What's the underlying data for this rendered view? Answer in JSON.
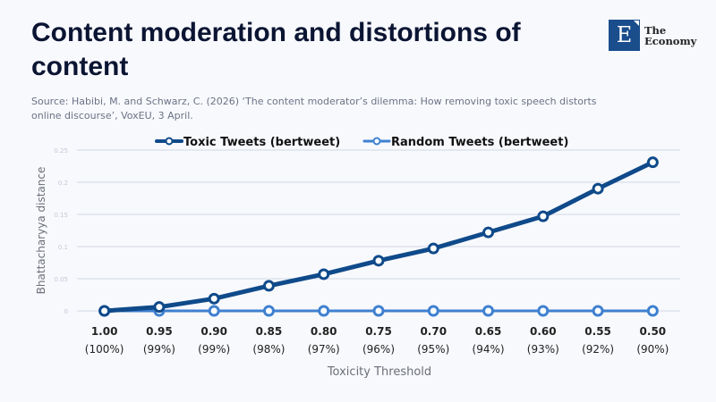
{
  "header": {
    "title": "Content moderation and distortions of content",
    "source": "Source: Habibi, M. and Schwarz, C. (2026) ‘The content moderator’s dilemma: How removing toxic speech distorts online discourse’, VoxEU, 3 April.",
    "logo_letter": "E",
    "logo_text_1": "The",
    "logo_text_2": "Economy"
  },
  "colors": {
    "toxic": "#0f4a8a",
    "random": "#3f80d0",
    "grid": "#cfd7e4"
  },
  "chart_data": {
    "type": "line",
    "title": "Content moderation and distortions of content",
    "xlabel": "Toxicity Threshold",
    "ylabel": "Bhattacharyya distance",
    "ylim": [
      0,
      0.25
    ],
    "yticks": [
      "0",
      "0.05",
      "0.1",
      "0.15",
      "0.2",
      "0.25"
    ],
    "ytick_values": [
      0,
      0.05,
      0.1,
      0.15,
      0.2,
      0.25
    ],
    "grid": true,
    "legend_position": "top-center",
    "categories": [
      {
        "top": "1.00",
        "bottom": "(100%)"
      },
      {
        "top": "0.95",
        "bottom": "(99%)"
      },
      {
        "top": "0.90",
        "bottom": "(99%)"
      },
      {
        "top": "0.85",
        "bottom": "(98%)"
      },
      {
        "top": "0.80",
        "bottom": "(97%)"
      },
      {
        "top": "0.75",
        "bottom": "(96%)"
      },
      {
        "top": "0.70",
        "bottom": "(95%)"
      },
      {
        "top": "0.65",
        "bottom": "(94%)"
      },
      {
        "top": "0.60",
        "bottom": "(93%)"
      },
      {
        "top": "0.55",
        "bottom": "(92%)"
      },
      {
        "top": "0.50",
        "bottom": "(90%)"
      }
    ],
    "series": [
      {
        "name": "Toxic Tweets (bertweet)",
        "values": [
          0,
          0.006,
          0.019,
          0.039,
          0.057,
          0.078,
          0.097,
          0.122,
          0.147,
          0.19,
          0.231
        ]
      },
      {
        "name": "Random Tweets (bertweet)",
        "values": [
          0,
          0,
          0,
          0,
          0,
          0,
          0,
          0,
          0,
          0,
          0
        ]
      }
    ]
  }
}
